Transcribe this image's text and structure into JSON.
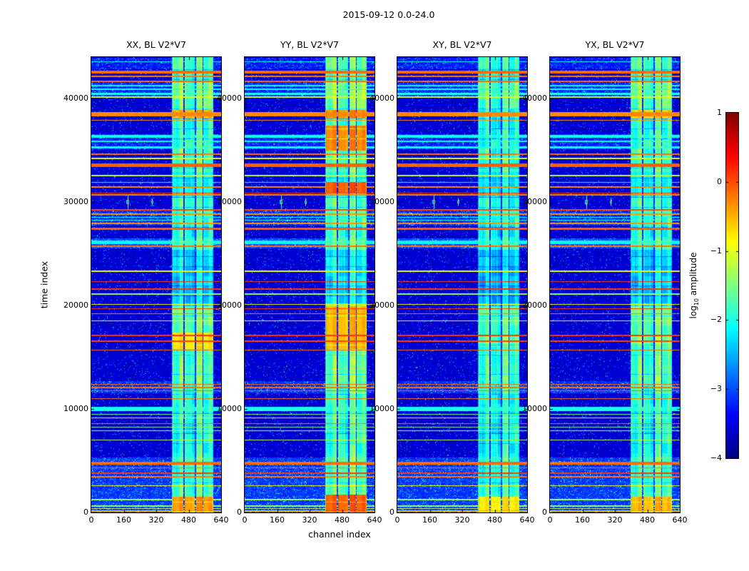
{
  "figure": {
    "title": "2015-09-12 0.0-24.0"
  },
  "axes": {
    "xlabel": "channel index",
    "ylabel": "time index",
    "x_tick_labels": [
      "0",
      "160",
      "320",
      "480",
      "640"
    ],
    "y_tick_labels": [
      "0",
      "10000",
      "20000",
      "30000",
      "40000"
    ]
  },
  "colorbar": {
    "label_prefix": "log",
    "label_sub": "10",
    "label_suffix": " amplitude",
    "tick_labels": [
      "1",
      "0",
      "−1",
      "−2",
      "−3",
      "−4"
    ]
  },
  "chart_data": {
    "type": "heatmap",
    "title": "2015-09-12 0.0-24.0",
    "xlabel": "channel index",
    "ylabel": "time index",
    "x_range": [
      0,
      640
    ],
    "y_range": [
      0,
      44000
    ],
    "x_ticks": [
      0,
      160,
      320,
      480,
      640
    ],
    "y_ticks": [
      0,
      10000,
      20000,
      30000,
      40000
    ],
    "colormap": "jet",
    "value_label": "log10 amplitude",
    "value_range": [
      -4,
      1
    ],
    "colorbar_ticks": [
      1,
      0,
      -1,
      -2,
      -3,
      -4
    ],
    "panels": [
      {
        "title": "XX, BL V2*V7",
        "band_level_offset": 0.0,
        "band_hot_intervals": [
          [
            0,
            1500,
            -0.35
          ],
          [
            15800,
            17400,
            -0.7
          ],
          [
            38100,
            38900,
            -0.45
          ]
        ]
      },
      {
        "title": "YY, BL V2*V7",
        "band_level_offset": 0.12,
        "band_hot_intervals": [
          [
            0,
            1700,
            -0.05
          ],
          [
            15800,
            20000,
            -0.5
          ],
          [
            30900,
            31950,
            -0.05
          ],
          [
            35000,
            37400,
            -0.25
          ],
          [
            38100,
            38900,
            -0.3
          ]
        ]
      },
      {
        "title": "XY, BL V2*V7",
        "band_level_offset": -0.12,
        "band_hot_intervals": [
          [
            0,
            1500,
            -0.75
          ]
        ]
      },
      {
        "title": "YX, BL V2*V7",
        "band_level_offset": 0.0,
        "band_hot_intervals": [
          [
            0,
            1500,
            -0.5
          ],
          [
            38100,
            38900,
            -0.6
          ]
        ]
      }
    ],
    "background": {
      "base_level": -3.6,
      "bright_regions": [
        [
          0,
          5300,
          -3.12
        ],
        [
          11500,
          12700,
          -3.18
        ],
        [
          25500,
          26500,
          -3.05
        ],
        [
          27700,
          29150,
          -3.18
        ],
        [
          35050,
          36550,
          -3.25
        ],
        [
          40100,
          41650,
          -3.2
        ],
        [
          42800,
          43900,
          -3.3
        ]
      ]
    },
    "rfi_band": {
      "channel_range": [
        398,
        602
      ],
      "base_level": -1.75,
      "dark_channel_dividers": [
        457,
        514,
        551
      ],
      "envelope": [
        [
          5400,
          9700,
          -0.15
        ],
        [
          12700,
          15400,
          0.15
        ],
        [
          16000,
          19900,
          0.2
        ],
        [
          20200,
          25400,
          -0.5
        ],
        [
          26500,
          27700,
          -0.15
        ],
        [
          30400,
          32900,
          -0.3
        ],
        [
          39000,
          41500,
          0.25
        ],
        [
          43000,
          44000,
          0.1
        ]
      ]
    },
    "horizontal_stripes": [
      [
        43550,
        120,
        -2.1
      ],
      [
        42550,
        280,
        -0.15
      ],
      [
        42150,
        110,
        -0.25
      ],
      [
        41650,
        170,
        -0.15
      ],
      [
        41250,
        110,
        -2.1
      ],
      [
        40900,
        110,
        -2.05
      ],
      [
        40450,
        230,
        -2.0
      ],
      [
        40150,
        110,
        -1.1
      ],
      [
        38500,
        380,
        -0.3
      ],
      [
        37900,
        110,
        -0.35
      ],
      [
        36350,
        260,
        -2.05
      ],
      [
        35850,
        110,
        -2.1
      ],
      [
        35300,
        210,
        -2.1
      ],
      [
        34650,
        140,
        -0.2
      ],
      [
        34200,
        110,
        -1.0
      ],
      [
        33550,
        280,
        -0.1
      ],
      [
        32550,
        110,
        -1.2
      ],
      [
        31900,
        120,
        -2.1
      ],
      [
        31450,
        110,
        -0.3
      ],
      [
        30880,
        100,
        0.1
      ],
      [
        30680,
        90,
        -0.3
      ],
      [
        29230,
        160,
        0.0
      ],
      [
        28830,
        100,
        -0.35
      ],
      [
        28530,
        100,
        -2.1
      ],
      [
        28230,
        100,
        -1.9
      ],
      [
        27930,
        100,
        -0.35
      ],
      [
        27420,
        260,
        -0.1
      ],
      [
        26100,
        300,
        -2.15
      ],
      [
        25700,
        120,
        -0.2
      ],
      [
        23300,
        110,
        -0.9
      ],
      [
        22300,
        100,
        0.1
      ],
      [
        21600,
        100,
        0.08
      ],
      [
        21100,
        100,
        -1.4
      ],
      [
        20100,
        100,
        -0.85
      ],
      [
        19700,
        100,
        0.1
      ],
      [
        19200,
        110,
        -0.25
      ],
      [
        18500,
        100,
        -0.9
      ],
      [
        17100,
        100,
        0.1
      ],
      [
        16550,
        100,
        0.05
      ],
      [
        15700,
        110,
        -0.2
      ],
      [
        12380,
        130,
        -0.15
      ],
      [
        12060,
        120,
        -0.18
      ],
      [
        11760,
        120,
        -0.12
      ],
      [
        11000,
        110,
        -0.22
      ],
      [
        10000,
        400,
        -2.0
      ],
      [
        9500,
        100,
        -1.55
      ],
      [
        9150,
        100,
        -0.9
      ],
      [
        8600,
        110,
        -0.2
      ],
      [
        8250,
        100,
        -1.5
      ],
      [
        7900,
        100,
        -1.25
      ],
      [
        7000,
        100,
        -1.25
      ],
      [
        4750,
        280,
        -0.15
      ],
      [
        4300,
        110,
        -0.22
      ],
      [
        3800,
        100,
        0.08
      ],
      [
        3450,
        110,
        -0.22
      ],
      [
        2600,
        100,
        -0.9
      ],
      [
        1250,
        100,
        -1.3
      ],
      [
        640,
        110,
        -1.35
      ],
      [
        380,
        120,
        -1.15
      ],
      [
        150,
        150,
        -0.55
      ]
    ],
    "point_sources": [
      {
        "t": 30000,
        "channel": 180,
        "extent": 700
      },
      {
        "t": 30000,
        "channel": 300,
        "extent": 380
      }
    ]
  }
}
